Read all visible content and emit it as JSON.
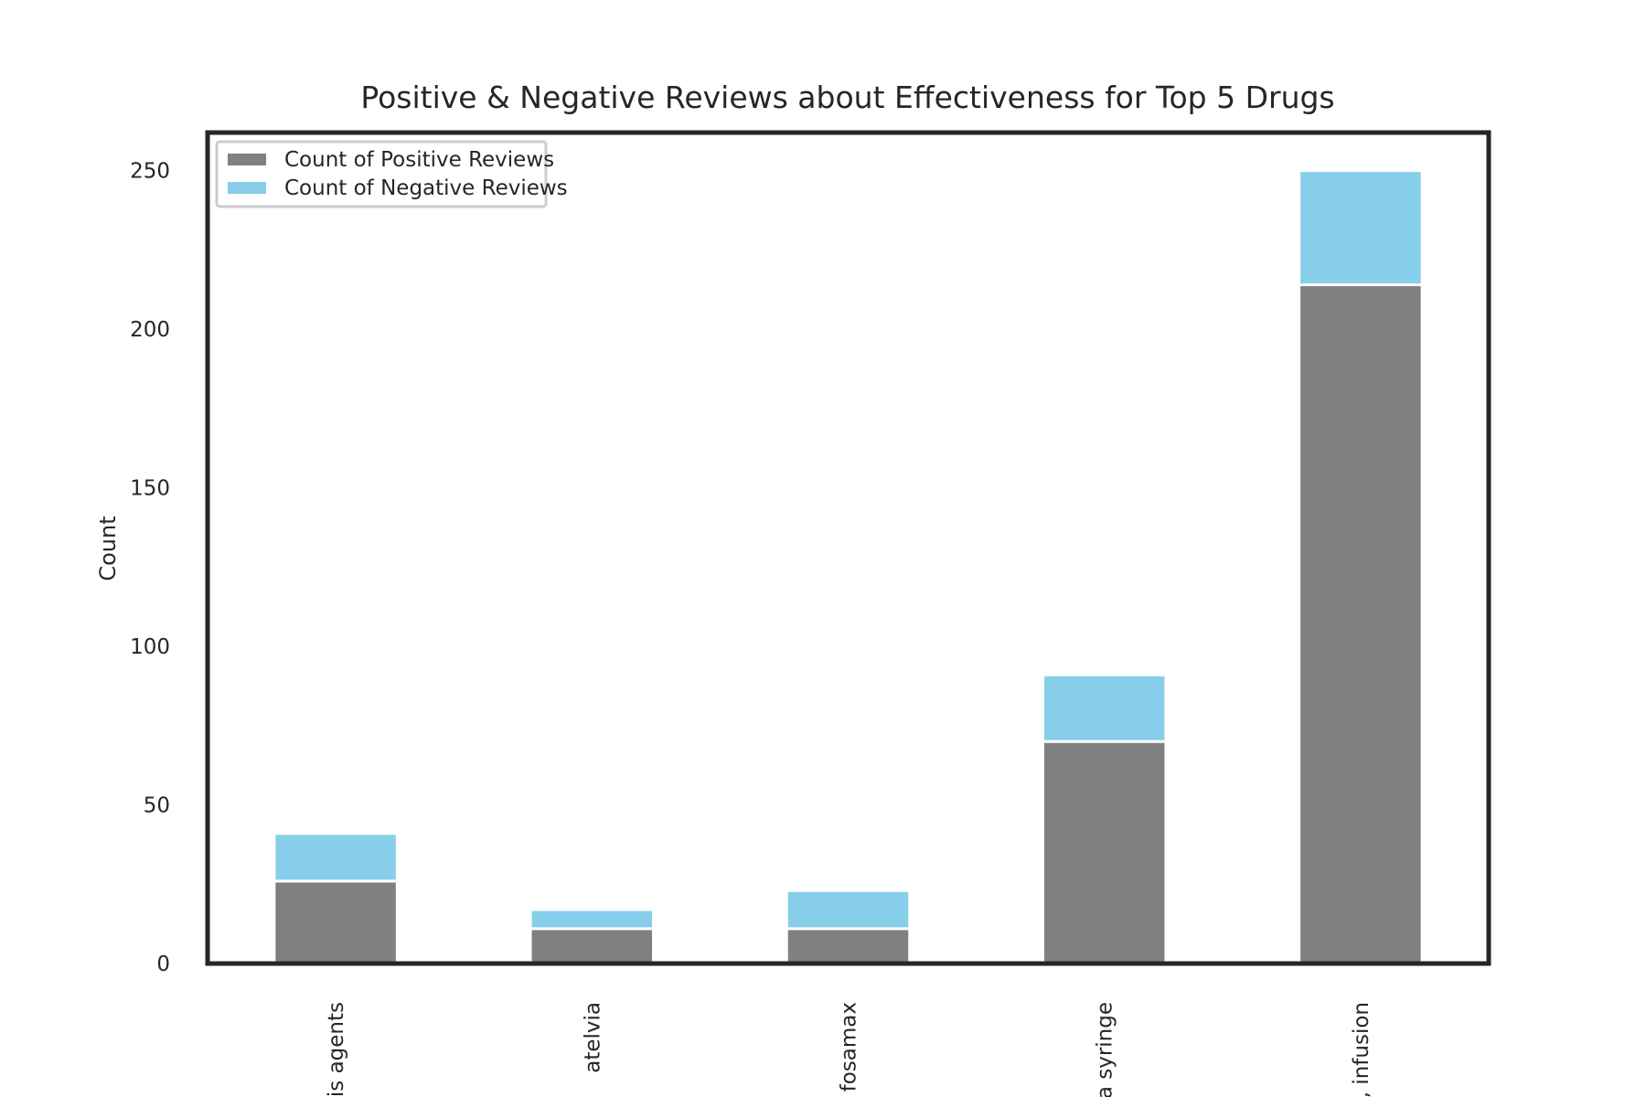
{
  "chart_data": {
    "type": "bar",
    "stacked": true,
    "title": "Positive & Negative Reviews about Effectiveness for Top 5 Drugs",
    "xlabel": "",
    "ylabel": "Count",
    "ylim": [
      0,
      262
    ],
    "yticks": [
      0,
      50,
      100,
      150,
      200,
      250
    ],
    "categories": [
      "osis agents",
      "atelvia",
      "fosamax",
      "olia syringe",
      "le, infusion"
    ],
    "series": [
      {
        "name": "Count of Positive Reviews",
        "color": "#808080",
        "values": [
          26,
          11,
          11,
          70,
          214
        ]
      },
      {
        "name": "Count of Negative Reviews",
        "color": "#87ceeb",
        "values": [
          15,
          6,
          12,
          21,
          36
        ]
      }
    ],
    "grid": false,
    "legend_position": "top-left"
  }
}
